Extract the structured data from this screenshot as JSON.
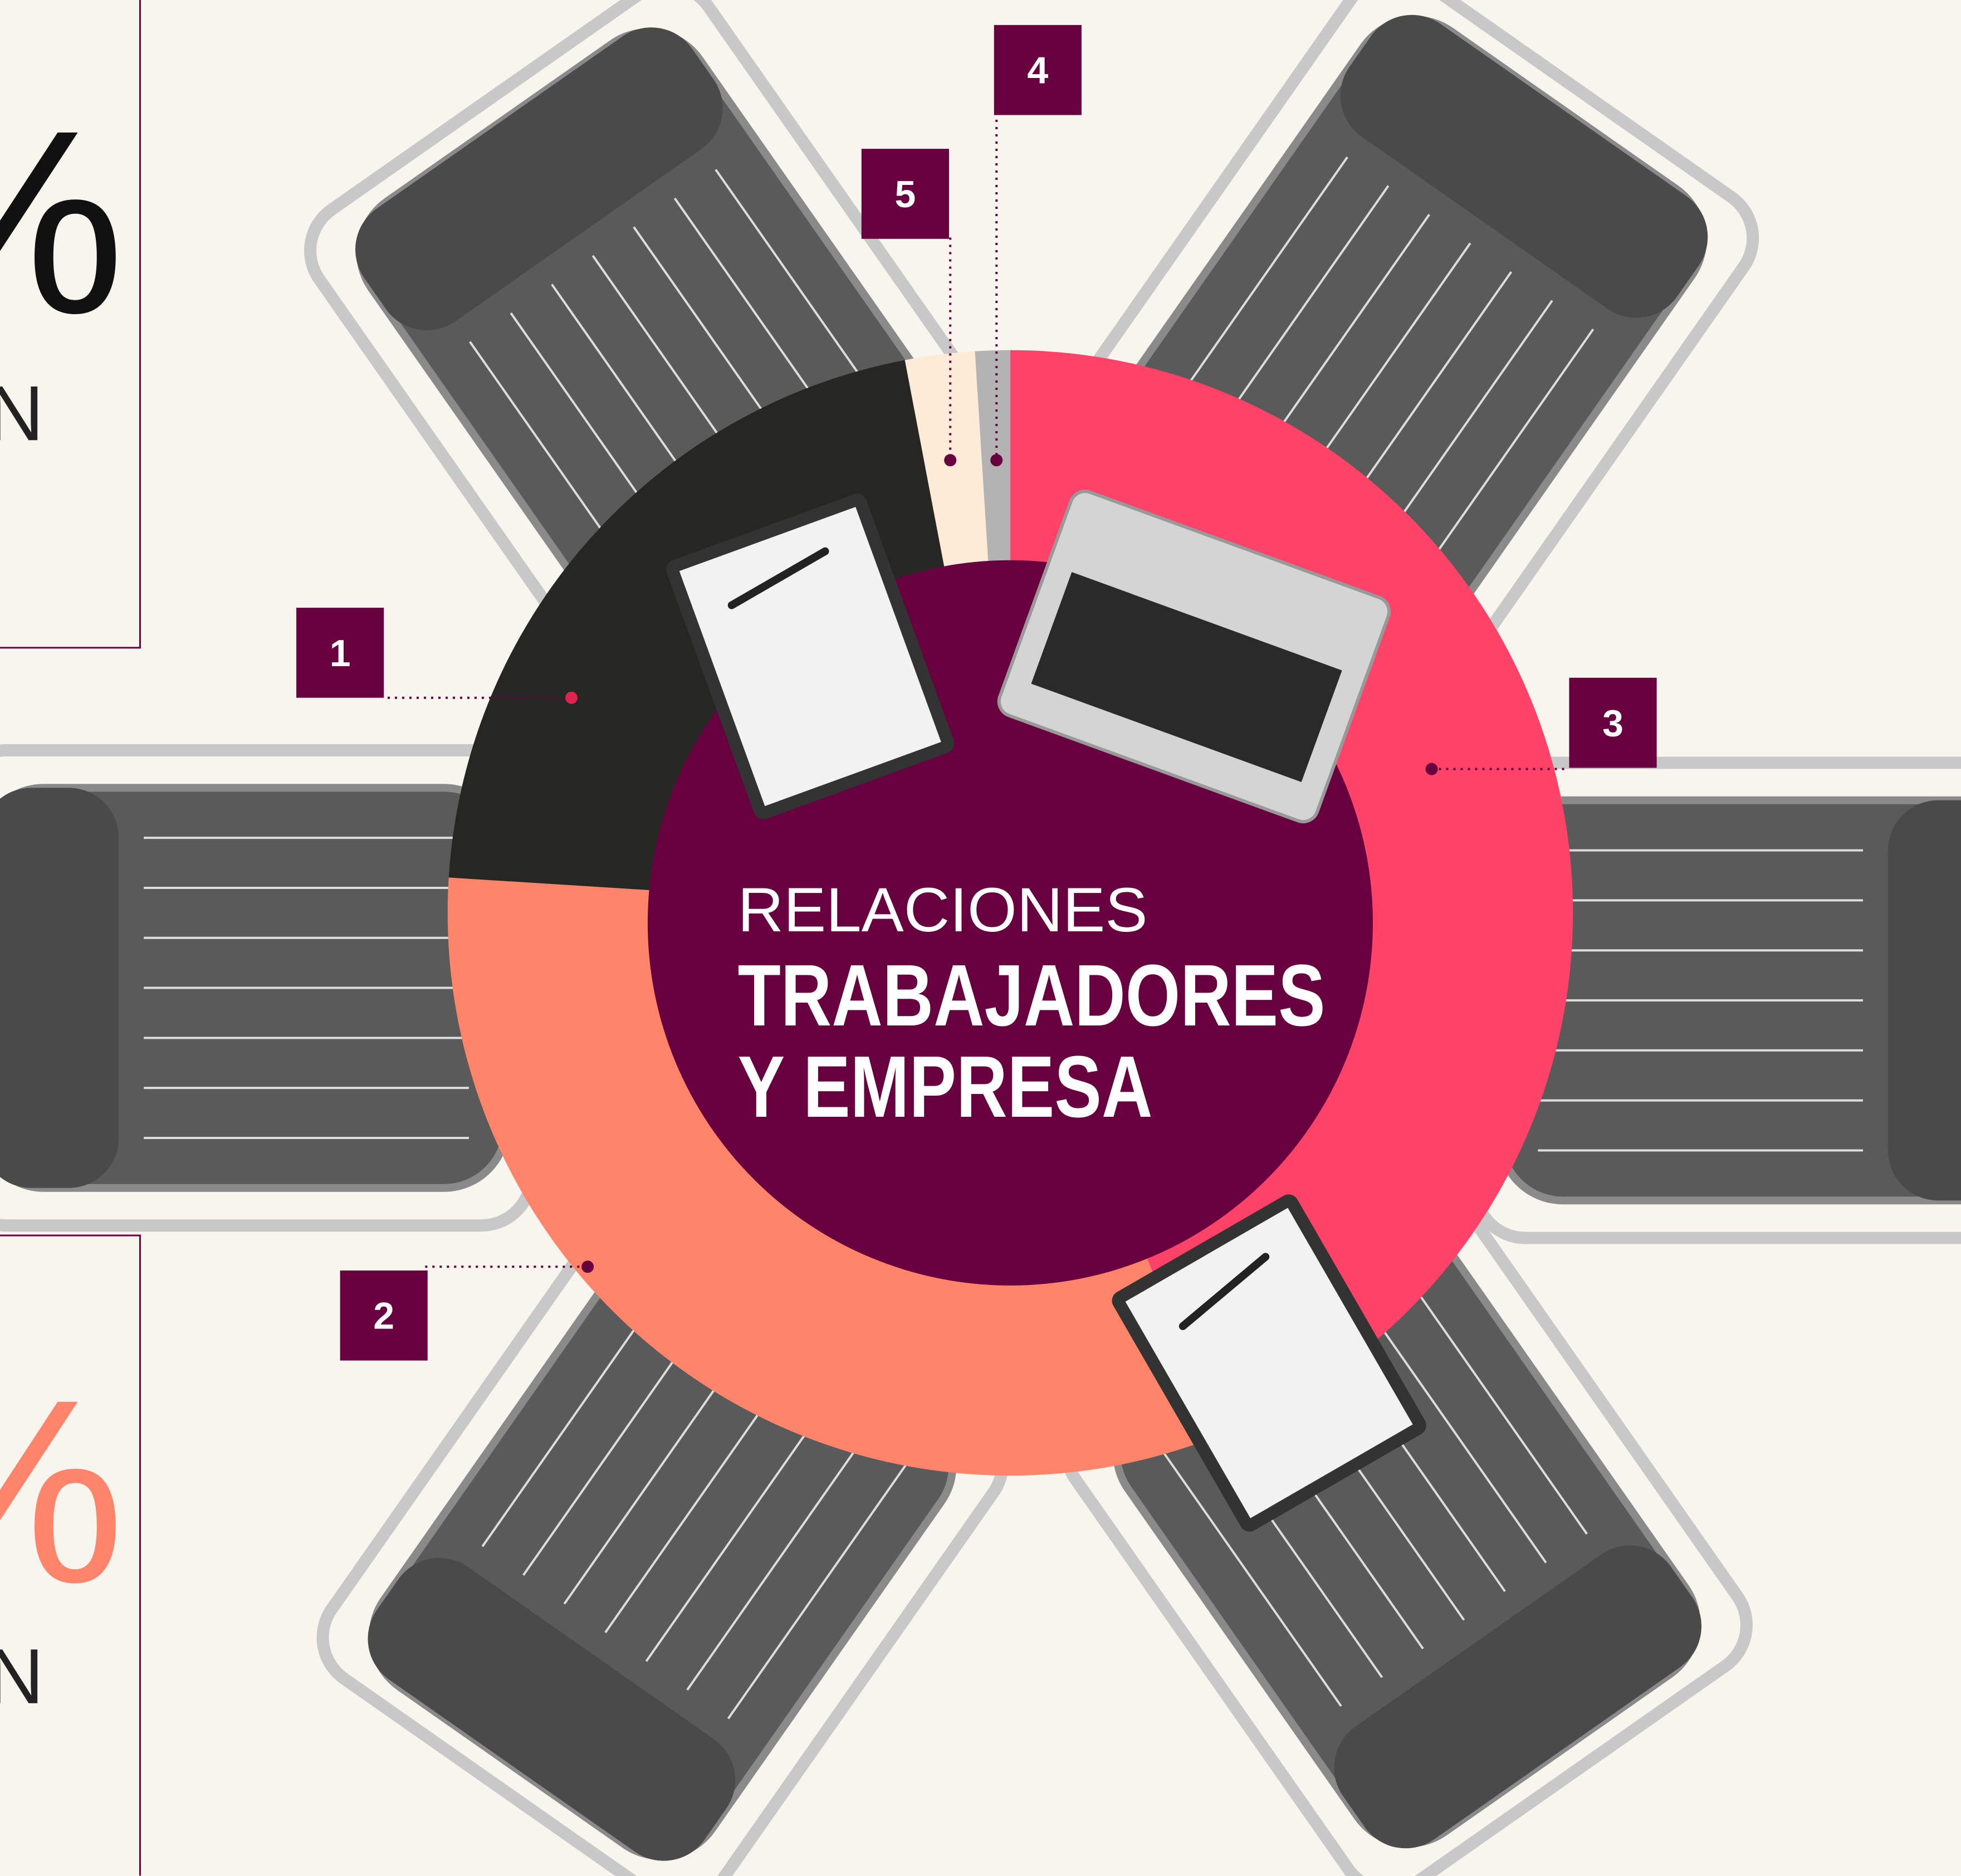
{
  "chart_data": {
    "type": "donut",
    "title": [
      "RELACIONES",
      "TRABAJADORES",
      "Y EMPRESA"
    ],
    "categories": [
      "3",
      "2",
      "1",
      "5",
      "4"
    ],
    "values": [
      44,
      32,
      21,
      2,
      1
    ],
    "colors": [
      "#ff4268",
      "#ff8469",
      "#262622",
      "#fdebd7",
      "#b3b3b3"
    ],
    "side_panels": [
      {
        "big": "%",
        "small": "N"
      },
      {
        "big": "%",
        "small": "N"
      }
    ]
  }
}
